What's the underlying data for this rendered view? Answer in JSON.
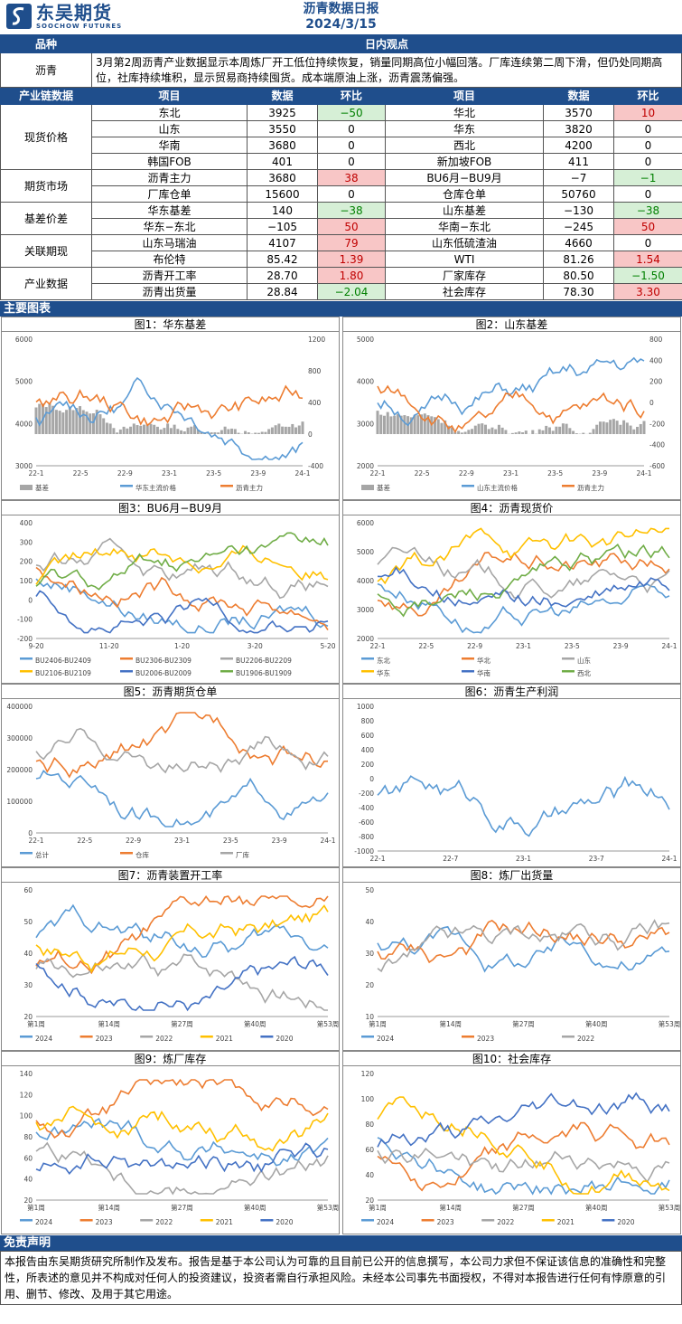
{
  "header": {
    "logo_cn": "东吴期货",
    "logo_en": "SOOCHOW FUTURES",
    "title": "沥青数据日报",
    "date": "2024/3/15"
  },
  "view": {
    "col1": "品种",
    "col2": "日内观点",
    "commodity": "沥青",
    "text": "3月第2周沥青产业数据显示本周炼厂开工低位持续恢复，销量同期高位小幅回落。厂库连续第二周下滑，但仍处同期高位，社库持续堆积，显示贸易商持续囤货。成本端原油上涨，沥青震荡偏强。"
  },
  "table": {
    "headers": [
      "产业链数据",
      "项目",
      "数据",
      "环比",
      "项目",
      "数据",
      "环比"
    ],
    "groups": [
      {
        "name": "现货价格",
        "rows": [
          {
            "i1": "东北",
            "v1": "3925",
            "c1": "−50",
            "s1": "green",
            "i2": "华北",
            "v2": "3570",
            "c2": "10",
            "s2": "red"
          },
          {
            "i1": "山东",
            "v1": "3550",
            "c1": "0",
            "s1": "",
            "i2": "华东",
            "v2": "3820",
            "c2": "0",
            "s2": ""
          },
          {
            "i1": "华南",
            "v1": "3680",
            "c1": "0",
            "s1": "",
            "i2": "西北",
            "v2": "4200",
            "c2": "0",
            "s2": ""
          },
          {
            "i1": "韩国FOB",
            "v1": "401",
            "c1": "0",
            "s1": "",
            "i2": "新加坡FOB",
            "v2": "411",
            "c2": "0",
            "s2": ""
          }
        ]
      },
      {
        "name": "期货市场",
        "rows": [
          {
            "i1": "沥青主力",
            "v1": "3680",
            "c1": "38",
            "s1": "red",
            "i2": "BU6月−BU9月",
            "v2": "−7",
            "c2": "−1",
            "s2": "green"
          },
          {
            "i1": "厂库仓单",
            "v1": "15600",
            "c1": "0",
            "s1": "",
            "i2": "仓库仓单",
            "v2": "50760",
            "c2": "0",
            "s2": ""
          }
        ]
      },
      {
        "name": "基差价差",
        "rows": [
          {
            "i1": "华东基差",
            "v1": "140",
            "c1": "−38",
            "s1": "green",
            "i2": "山东基差",
            "v2": "−130",
            "c2": "−38",
            "s2": "green"
          },
          {
            "i1": "华东−东北",
            "v1": "−105",
            "c1": "50",
            "s1": "red",
            "i2": "华南−东北",
            "v2": "−245",
            "c2": "50",
            "s2": "red"
          }
        ]
      },
      {
        "name": "关联期现",
        "rows": [
          {
            "i1": "山东马瑞油",
            "v1": "4107",
            "c1": "79",
            "s1": "red",
            "i2": "山东低硫渣油",
            "v2": "4660",
            "c2": "0",
            "s2": ""
          },
          {
            "i1": "布伦特",
            "v1": "85.42",
            "c1": "1.39",
            "s1": "red",
            "i2": "WTI",
            "v2": "81.26",
            "c2": "1.54",
            "s2": "red"
          }
        ]
      },
      {
        "name": "产业数据",
        "rows": [
          {
            "i1": "沥青开工率",
            "v1": "28.70",
            "c1": "1.80",
            "s1": "red",
            "i2": "厂家库存",
            "v2": "80.50",
            "c2": "−1.50",
            "s2": "green"
          },
          {
            "i1": "沥青出货量",
            "v1": "28.84",
            "c1": "−2.04",
            "s1": "green",
            "i2": "社会库存",
            "v2": "78.30",
            "c2": "3.30",
            "s2": "red"
          }
        ]
      }
    ]
  },
  "charts_title": "主要图表",
  "chart_data": [
    {
      "id": "c1",
      "title": "图1：华东基差",
      "type": "line",
      "yticks": [
        "6000",
        "5000",
        "4000",
        "3000"
      ],
      "y2ticks": [
        "1200",
        "800",
        "400",
        "0",
        "-400"
      ],
      "xticks": [
        "22-1",
        "22-5",
        "22-9",
        "23-1",
        "23-5",
        "23-9",
        "24-1"
      ],
      "legend": [
        "基差",
        "华东主流价格",
        "沥青主力"
      ],
      "colors": [
        "#a6a6a6",
        "#5b9bd5",
        "#ed7d31"
      ]
    },
    {
      "id": "c2",
      "title": "图2：山东基差",
      "type": "line",
      "yticks": [
        "5000",
        "4000",
        "3000",
        "2000"
      ],
      "y2ticks": [
        "800",
        "400",
        "200",
        "0",
        "-200",
        "-400",
        "-600"
      ],
      "xticks": [
        "22-1",
        "22-5",
        "22-9",
        "23-1",
        "23-5",
        "23-9",
        "24-1"
      ],
      "legend": [
        "基差",
        "山东主流价格",
        "沥青主力"
      ],
      "colors": [
        "#a6a6a6",
        "#5b9bd5",
        "#ed7d31"
      ]
    },
    {
      "id": "c3",
      "title": "图3：BU6月−BU9月",
      "type": "line",
      "yticks": [
        "400",
        "300",
        "200",
        "100",
        "0",
        "-100",
        "-200"
      ],
      "xticks": [
        "9-20",
        "11-20",
        "1-20",
        "3-20",
        "5-20"
      ],
      "legend": [
        "BU2406-BU2409",
        "BU2306-BU2309",
        "BU2206-BU2209",
        "BU2106-BU2109",
        "BU2006-BU2009",
        "BU1906-BU1909"
      ],
      "colors": [
        "#5b9bd5",
        "#ed7d31",
        "#a6a6a6",
        "#ffc000",
        "#4472c4",
        "#70ad47"
      ]
    },
    {
      "id": "c4",
      "title": "图4：沥青现货价",
      "type": "line",
      "yticks": [
        "6000",
        "5000",
        "4000",
        "3000",
        "2000"
      ],
      "xticks": [
        "22-1",
        "22-5",
        "22-9",
        "23-1",
        "23-5",
        "23-9",
        "24-1"
      ],
      "legend": [
        "东北",
        "华北",
        "山东",
        "华东",
        "华南",
        "西北"
      ],
      "colors": [
        "#5b9bd5",
        "#ed7d31",
        "#a6a6a6",
        "#ffc000",
        "#4472c4",
        "#70ad47"
      ]
    },
    {
      "id": "c5",
      "title": "图5：沥青期货仓单",
      "type": "line",
      "yticks": [
        "400000",
        "300000",
        "200000",
        "100000",
        "0"
      ],
      "xticks": [
        "22-1",
        "22-5",
        "22-9",
        "23-1",
        "23-5",
        "23-9",
        "24-1"
      ],
      "legend": [
        "总计",
        "仓库",
        "厂库"
      ],
      "colors": [
        "#5b9bd5",
        "#ed7d31",
        "#a6a6a6"
      ]
    },
    {
      "id": "c6",
      "title": "图6：沥青生产利润",
      "type": "line",
      "yticks": [
        "1000",
        "800",
        "600",
        "400",
        "200",
        "0",
        "-200",
        "-400",
        "-600",
        "-800",
        "-1000"
      ],
      "xticks": [
        "22-1",
        "22-7",
        "23-1",
        "23-7",
        "24-1"
      ],
      "legend": [],
      "colors": [
        "#5b9bd5"
      ]
    },
    {
      "id": "c7",
      "title": "图7：沥青装置开工率",
      "type": "line",
      "yticks": [
        "60",
        "50",
        "40",
        "30",
        "20"
      ],
      "xticks": [
        "第1周",
        "第14周",
        "第27周",
        "第40周",
        "第53周"
      ],
      "legend": [
        "2024",
        "2023",
        "2022",
        "2021",
        "2020"
      ],
      "colors": [
        "#5b9bd5",
        "#ed7d31",
        "#a6a6a6",
        "#ffc000",
        "#4472c4"
      ]
    },
    {
      "id": "c8",
      "title": "图8：炼厂出货量",
      "type": "line",
      "yticks": [
        "50",
        "40",
        "30",
        "20",
        "10"
      ],
      "xticks": [
        "第1周",
        "第14周",
        "第27周",
        "第40周",
        "第53周"
      ],
      "legend": [
        "2024",
        "2023",
        "2022"
      ],
      "colors": [
        "#5b9bd5",
        "#ed7d31",
        "#a6a6a6"
      ]
    },
    {
      "id": "c9",
      "title": "图9：炼厂库存",
      "type": "line",
      "yticks": [
        "140",
        "120",
        "100",
        "80",
        "60",
        "40",
        "20"
      ],
      "xticks": [
        "第1周",
        "第14周",
        "第27周",
        "第40周",
        "第53周"
      ],
      "legend": [
        "2024",
        "2023",
        "2022",
        "2021",
        "2020"
      ],
      "colors": [
        "#5b9bd5",
        "#ed7d31",
        "#a6a6a6",
        "#ffc000",
        "#4472c4"
      ]
    },
    {
      "id": "c10",
      "title": "图10：社会库存",
      "type": "line",
      "yticks": [
        "120",
        "100",
        "80",
        "60",
        "40",
        "20"
      ],
      "xticks": [
        "第1周",
        "第14周",
        "第27周",
        "第40周",
        "第53周"
      ],
      "legend": [
        "2024",
        "2023",
        "2022",
        "2021",
        "2020"
      ],
      "colors": [
        "#5b9bd5",
        "#ed7d31",
        "#a6a6a6",
        "#ffc000",
        "#4472c4"
      ]
    }
  ],
  "disclaimer": {
    "title": "免责声明",
    "text": "本报告由东吴期货研究所制作及发布。报告是基于本公司认为可靠的且目前已公开的信息撰写，本公司力求但不保证该信息的准确性和完整性，所表述的意见并不构成对任何人的投资建议，投资者需自行承担风险。未经本公司事先书面授权，不得对本报告进行任何有悖原意的引用、删节、修改、及用于其它用途。"
  }
}
